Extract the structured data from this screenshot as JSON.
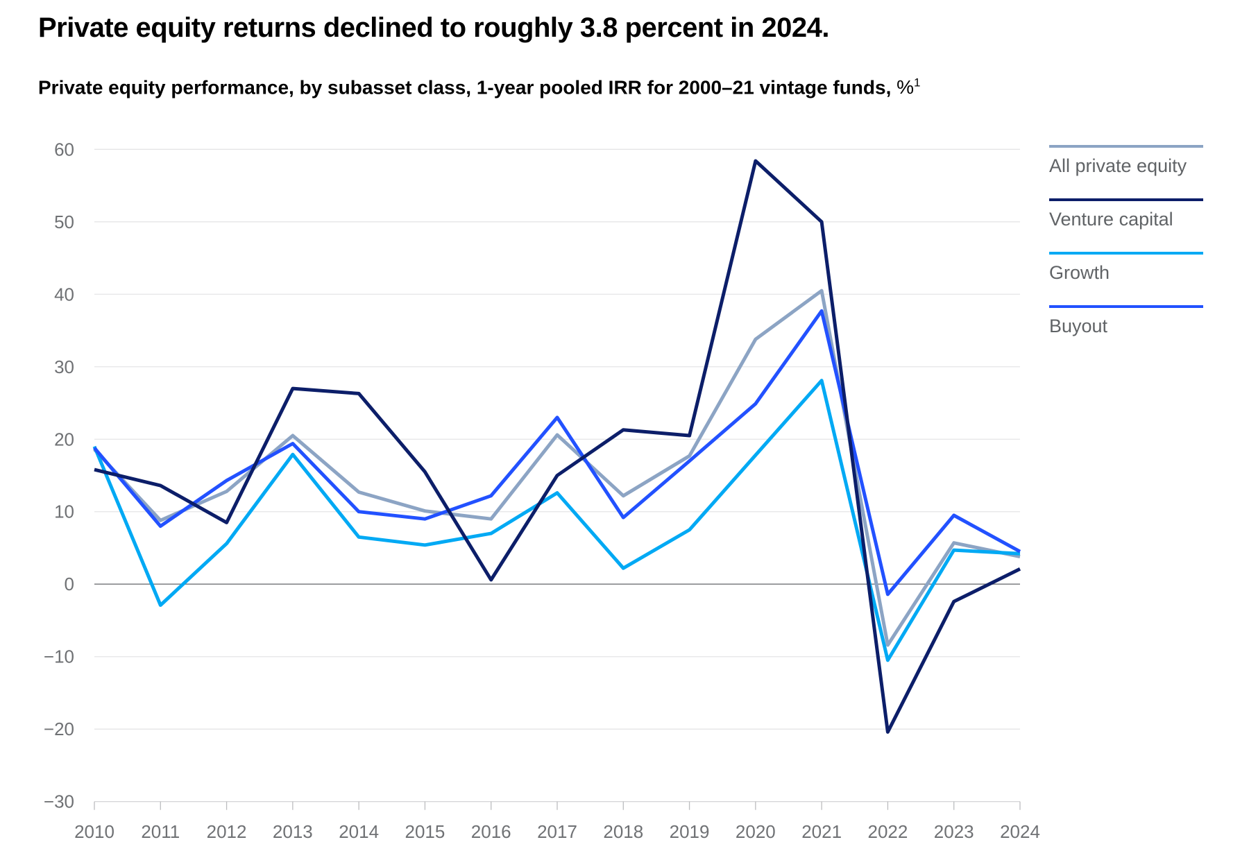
{
  "page": {
    "title": "Private equity returns declined to roughly 3.8 percent in 2024.",
    "subtitle": "Private equity performance, by subasset class, 1-year pooled IRR for 2000–21 vintage funds,",
    "subtitle_unit": "%",
    "footnote_marker": "1"
  },
  "colors": {
    "background": "#ffffff",
    "title_text": "#000000",
    "axis_label_text": "#6f7174",
    "legend_label_text": "#606366",
    "gridline": "#e4e4e6",
    "zero_line": "#85878a",
    "axis_line": "#d6d6d8",
    "tick_mark": "#bcbdbf"
  },
  "chart_data": {
    "type": "line",
    "title": "Private equity performance, by subasset class, 1-year pooled IRR for 2000–21 vintage funds, %",
    "xlabel": "",
    "ylabel": "",
    "categories": [
      2010,
      2011,
      2012,
      2013,
      2014,
      2015,
      2016,
      2017,
      2018,
      2019,
      2020,
      2021,
      2022,
      2023,
      2024
    ],
    "series": [
      {
        "name": "All private equity",
        "color": "#8ca4c4",
        "values": [
          18.6,
          8.8,
          12.8,
          20.5,
          12.7,
          10.1,
          9.0,
          20.6,
          12.2,
          17.7,
          33.8,
          40.5,
          -8.4,
          5.7,
          3.8
        ]
      },
      {
        "name": "Venture capital",
        "color": "#0c1e69",
        "values": [
          15.8,
          13.6,
          8.5,
          27.0,
          26.3,
          15.5,
          0.6,
          15.0,
          21.3,
          20.5,
          58.4,
          50.0,
          -20.4,
          -2.4,
          2.1
        ]
      },
      {
        "name": "Growth",
        "color": "#00a9f4",
        "values": [
          19.0,
          -2.9,
          5.6,
          17.9,
          6.5,
          5.4,
          7.0,
          12.6,
          2.2,
          7.5,
          17.8,
          28.1,
          -10.5,
          4.7,
          4.2
        ]
      },
      {
        "name": "Buyout",
        "color": "#2251ff",
        "values": [
          18.8,
          8.0,
          14.3,
          19.4,
          10.0,
          9.0,
          12.2,
          23.0,
          9.2,
          17.0,
          24.9,
          37.7,
          -1.4,
          9.5,
          4.5
        ]
      }
    ],
    "draw_order": [
      0,
      2,
      3,
      1
    ],
    "ylim": [
      -30,
      60
    ],
    "y_tick_values": [
      60,
      50,
      40,
      30,
      20,
      10,
      0,
      -10,
      -20,
      -30
    ],
    "grid": "horizontal",
    "legend_position": "top-right",
    "line_width": 5
  }
}
